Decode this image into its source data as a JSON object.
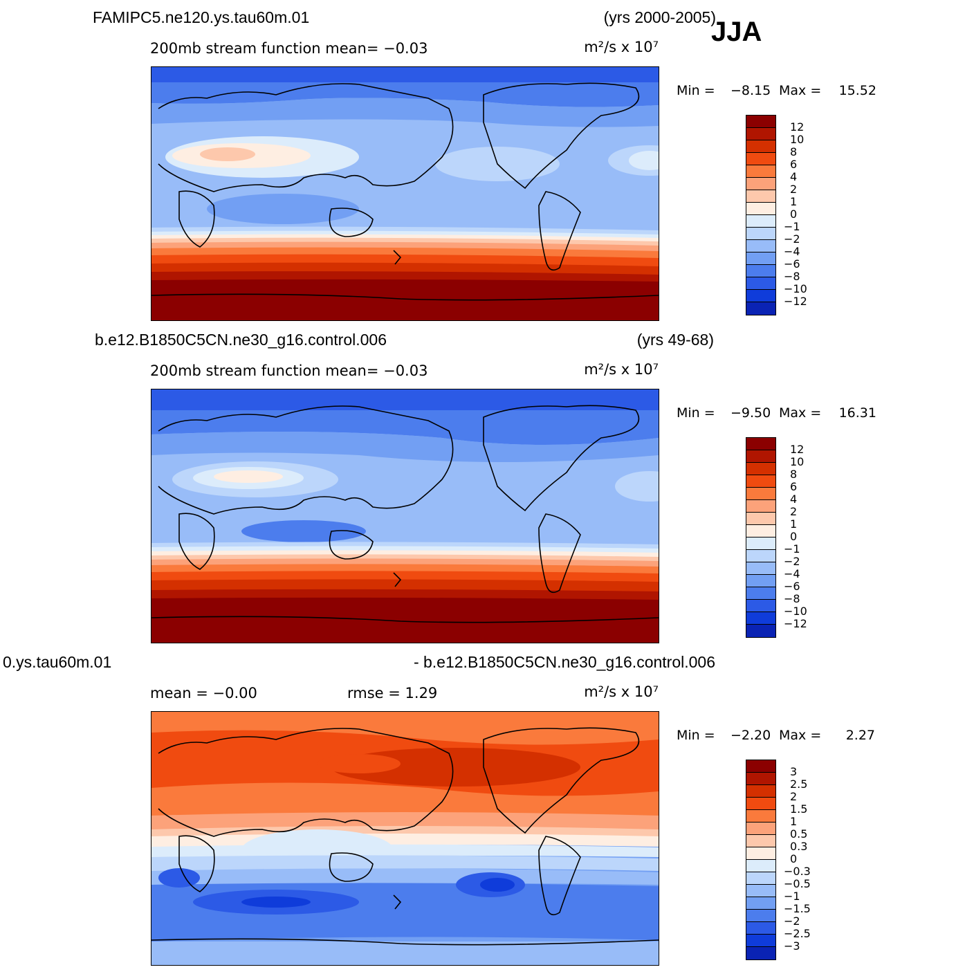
{
  "season": "JJA",
  "panels": [
    {
      "case_title": "FAMIPC5.ne120.ys.tau60m.01",
      "years": "(yrs 2000-2005)",
      "subtitle_left": "200mb stream function  mean=  −0.03",
      "subtitle_right": "",
      "units": "m²/s x 10⁷",
      "min_label": "Min =",
      "min_value": "−8.15",
      "max_label": "Max =",
      "max_value": "15.52",
      "colorbar": {
        "colors": [
          "#8b0000",
          "#b01500",
          "#d43000",
          "#f04b10",
          "#fa7a3c",
          "#fca27a",
          "#fdc8ac",
          "#feeee2",
          "#dcecfb",
          "#bcd6fb",
          "#98bcf8",
          "#729ff3",
          "#4c7ded",
          "#2c5ae6",
          "#0f3cda",
          "#0a23b4",
          "#07128a"
        ],
        "labels": [
          "12",
          "10",
          "8",
          "6",
          "4",
          "2",
          "1",
          "0",
          "−1",
          "−2",
          "−4",
          "−6",
          "−8",
          "−10",
          "−12"
        ]
      }
    },
    {
      "case_title": "b.e12.B1850C5CN.ne30_g16.control.006",
      "years": "(yrs 49-68)",
      "subtitle_left": "200mb stream function  mean=  −0.03",
      "subtitle_right": "",
      "units": "m²/s x 10⁷",
      "min_label": "Min =",
      "min_value": "−9.50",
      "max_label": "Max =",
      "max_value": "16.31",
      "colorbar": {
        "colors": [
          "#8b0000",
          "#b01500",
          "#d43000",
          "#f04b10",
          "#fa7a3c",
          "#fca27a",
          "#fdc8ac",
          "#feeee2",
          "#dcecfb",
          "#bcd6fb",
          "#98bcf8",
          "#729ff3",
          "#4c7ded",
          "#2c5ae6",
          "#0f3cda",
          "#0a23b4",
          "#07128a"
        ],
        "labels": [
          "12",
          "10",
          "8",
          "6",
          "4",
          "2",
          "1",
          "0",
          "−1",
          "−2",
          "−4",
          "−6",
          "−8",
          "−10",
          "−12"
        ]
      }
    },
    {
      "case_title": "0.ys.tau60m.01",
      "years": "- b.e12.B1850C5CN.ne30_g16.control.006",
      "subtitle_left": "mean =  −0.00",
      "subtitle_right": "rmse =   1.29",
      "units": "m²/s x 10⁷",
      "min_label": "Min =",
      "min_value": "−2.20",
      "max_label": "Max =",
      "max_value": "2.27",
      "colorbar": {
        "colors": [
          "#8b0000",
          "#b01500",
          "#d43000",
          "#f04b10",
          "#fa7a3c",
          "#fca27a",
          "#fdc8ac",
          "#feeee2",
          "#dcecfb",
          "#bcd6fb",
          "#98bcf8",
          "#729ff3",
          "#4c7ded",
          "#2c5ae6",
          "#0f3cda",
          "#0a23b4",
          "#07128a"
        ],
        "labels": [
          "3",
          "2.5",
          "2",
          "1.5",
          "1",
          "0.5",
          "0.3",
          "0",
          "−0.3",
          "−0.5",
          "−1",
          "−1.5",
          "−2",
          "−2.5",
          "−3"
        ]
      }
    }
  ]
}
